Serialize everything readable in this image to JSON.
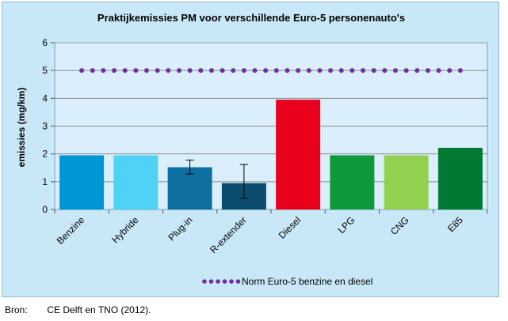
{
  "chart_data": {
    "type": "bar",
    "title": "Praktijkemissies PM voor verschillende Euro-5 personenauto's",
    "xlabel": "",
    "ylabel": "emissies (mg/km)",
    "ylim": [
      0,
      6
    ],
    "yticks": [
      0,
      1,
      2,
      3,
      4,
      5,
      6
    ],
    "grid": true,
    "categories": [
      "Benzine",
      "Hybride",
      "Plug-in",
      "R-extender",
      "Diesel",
      "LPG",
      "CNG",
      "E85"
    ],
    "values": [
      1.95,
      1.95,
      1.52,
      0.95,
      3.95,
      1.95,
      1.95,
      2.22
    ],
    "error_bars": [
      null,
      null,
      [
        1.28,
        1.78
      ],
      null,
      null,
      null,
      null,
      null
    ],
    "error_bars_note": "R-extender error range",
    "error_bars_full": [
      null,
      null,
      [
        1.28,
        1.78
      ],
      [
        0.4,
        1.62
      ],
      null,
      null,
      null,
      null
    ],
    "bar_colors": [
      "#0096d6",
      "#4fd2f7",
      "#0e6fa0",
      "#0a4d6e",
      "#e8001c",
      "#0e9a3c",
      "#92d050",
      "#007a33"
    ],
    "reference_line": {
      "name": "Norm Euro-5 benzine en diesel",
      "value": 5,
      "color": "#7030a0",
      "style": "dotted"
    },
    "legend_position": "bottom"
  },
  "source": {
    "label": "Bron:",
    "text": "CE Delft en TNO (2012)."
  }
}
